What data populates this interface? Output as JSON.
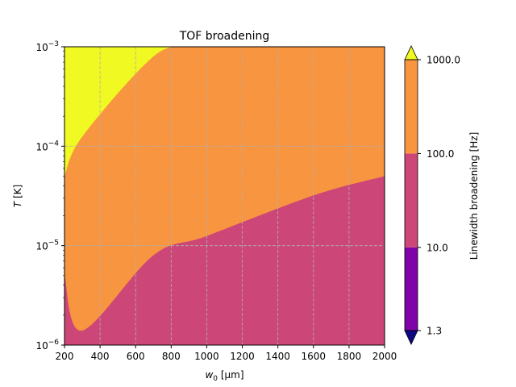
{
  "chart_data": {
    "type": "contourf",
    "title": "TOF broadening",
    "xlabel_main": "w",
    "xlabel_sub": "0",
    "xlabel_unit": " [µm]",
    "ylabel_main": "T",
    "ylabel_unit": " [K]",
    "x_range": [
      200,
      2000
    ],
    "x_ticks": [
      200,
      400,
      600,
      800,
      1000,
      1200,
      1400,
      1600,
      1800,
      2000
    ],
    "x_tick_labels": [
      "200",
      "400",
      "600",
      "800",
      "1000",
      "1200",
      "1400",
      "1600",
      "1800",
      "2000"
    ],
    "y_scale": "log",
    "y_range": [
      1e-06,
      0.001
    ],
    "y_ticks": [
      1e-06,
      1e-05,
      0.0001,
      0.001
    ],
    "y_tick_labels": [
      {
        "base": "10",
        "exp": "−6"
      },
      {
        "base": "10",
        "exp": "−5"
      },
      {
        "base": "10",
        "exp": "−4"
      },
      {
        "base": "10",
        "exp": "−3"
      }
    ],
    "grid": true,
    "grid_style": "dashed",
    "contour_boundaries": [
      {
        "level": 100.0,
        "points": [
          [
            200,
            5e-06
          ],
          [
            300,
            1.4e-06
          ],
          [
            700,
            8e-06
          ],
          [
            1000,
            1.25e-05
          ],
          [
            1600,
            3.2e-05
          ],
          [
            2000,
            5e-05
          ]
        ]
      },
      {
        "level": 1000.0,
        "points": [
          [
            200,
            5e-05
          ],
          [
            300,
            0.000125
          ],
          [
            700,
            0.0008
          ],
          [
            900,
            0.001
          ]
        ]
      }
    ],
    "bands": [
      {
        "range": [
          10.0,
          100.0
        ],
        "color": "#cc4778"
      },
      {
        "range": [
          100.0,
          1000.0
        ],
        "color": "#f89540"
      },
      {
        "range": [
          1000.0,
          "max"
        ],
        "color": "#f0f921"
      }
    ],
    "colorbar": {
      "label": "Linewidth broadening [Hz]",
      "scale": "log",
      "levels": [
        1.3,
        10.0,
        100.0,
        1000.0
      ],
      "tick_labels": [
        "1.3",
        "10.0",
        "100.0",
        "1000.0"
      ],
      "segment_colors": [
        "#7e03a8",
        "#cc4778",
        "#f89540"
      ],
      "under_color": "#0d0887",
      "over_color": "#f0f921",
      "extend": "both"
    }
  }
}
